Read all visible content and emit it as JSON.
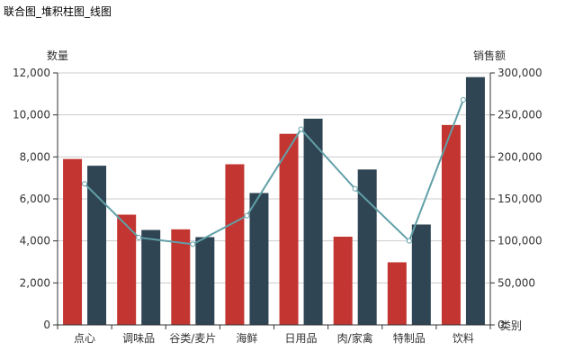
{
  "window": {
    "title": "联合图_堆积柱图_线图"
  },
  "colors": {
    "series1": "#c23531",
    "series2": "#2f4554",
    "line": "#61a0a8",
    "grid": "#cccccc",
    "axis": "#333333"
  },
  "chart_data": {
    "type": "bar",
    "title": "联合图_堆积柱图_线图",
    "xlabel": "类别",
    "ylabel_left": "数量",
    "ylabel_right": "销售额",
    "categories": [
      "点心",
      "调味品",
      "谷类/麦片",
      "海鲜",
      "日用品",
      "肉/家禽",
      "特制品",
      "饮料"
    ],
    "series": [
      {
        "type": "bar",
        "axis": "left",
        "values": [
          7900,
          5250,
          4550,
          7650,
          9100,
          4200,
          2980,
          9520
        ]
      },
      {
        "type": "bar",
        "axis": "left",
        "values": [
          7580,
          4520,
          4180,
          6280,
          9820,
          7400,
          4780,
          11800
        ]
      },
      {
        "type": "line",
        "axis": "right",
        "values": [
          168000,
          104000,
          96000,
          130000,
          233000,
          162000,
          100000,
          268000
        ]
      }
    ],
    "ylim_left": [
      0,
      12000
    ],
    "yticks_left": [
      "0",
      "2,000",
      "4,000",
      "6,000",
      "8,000",
      "10,000",
      "12,000"
    ],
    "ylim_right": [
      0,
      300000
    ],
    "yticks_right": [
      "0",
      "50,000",
      "100,000",
      "150,000",
      "200,000",
      "250,000",
      "300,000"
    ],
    "grid": true,
    "legend": "none"
  }
}
